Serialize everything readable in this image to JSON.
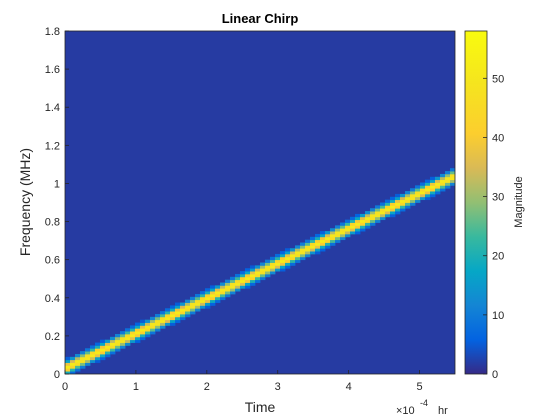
{
  "chart_data": {
    "type": "heatmap",
    "title": "Linear Chirp",
    "xlabel": "Time",
    "ylabel": "Frequency (MHz)",
    "x_exponent_label": "×10",
    "x_exponent_power": "-4",
    "x_exponent_unit": "hr",
    "xlim": [
      0,
      5.5
    ],
    "ylim": [
      0,
      1.8
    ],
    "xticks": [
      "0",
      "1",
      "2",
      "3",
      "4",
      "5"
    ],
    "yticks": [
      "0",
      "0.2",
      "0.4",
      "0.6",
      "0.8",
      "1",
      "1.2",
      "1.4",
      "1.6",
      "1.8"
    ],
    "colorbar": {
      "label": "Magnitude",
      "range": [
        0,
        58
      ],
      "ticks": [
        "0",
        "10",
        "20",
        "30",
        "40",
        "50"
      ],
      "colormap": "parula"
    },
    "ridge": {
      "start": {
        "x": 0,
        "y": 0.03
      },
      "end": {
        "x": 5.5,
        "y": 1.04
      },
      "peak_magnitude": 50
    }
  }
}
